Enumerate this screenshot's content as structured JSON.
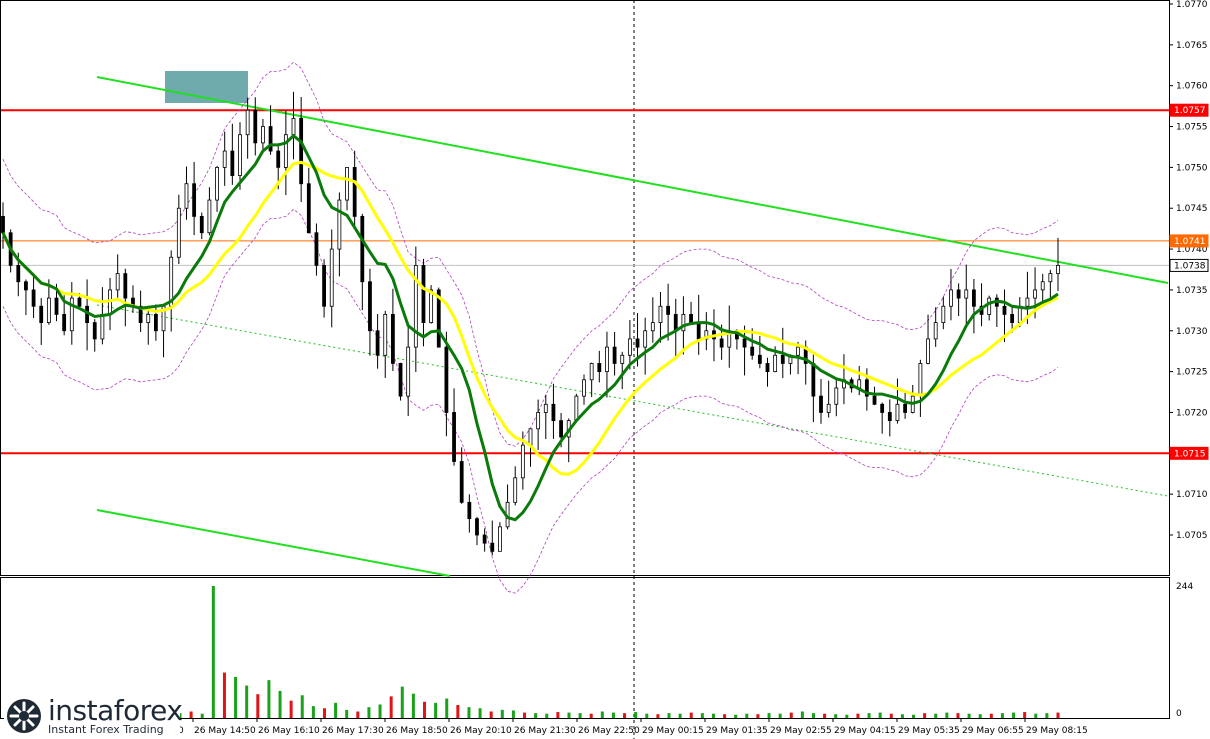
{
  "chart_data": {
    "type": "candlestick",
    "instrument_logo": {
      "brand": "instaforex",
      "tagline": "Instant Forex Trading"
    },
    "price_axis": {
      "ylim": [
        1.07,
        1.077
      ],
      "ticks": [
        "1.0770",
        "1.0765",
        "1.0760",
        "1.0755",
        "1.0750",
        "1.0745",
        "1.0740",
        "1.0735",
        "1.0730",
        "1.0725",
        "1.0720",
        "1.0715",
        "1.0710",
        "1.0705"
      ],
      "tick_values": [
        1.077,
        1.0765,
        1.076,
        1.0755,
        1.075,
        1.0745,
        1.074,
        1.0735,
        1.073,
        1.0725,
        1.072,
        1.0715,
        1.071,
        1.0705
      ]
    },
    "time_axis": {
      "labels": [
        "0",
        "26 May 14:50",
        "26 May 16:10",
        "26 May 17:30",
        "26 May 18:50",
        "26 May 20:10",
        "26 May 21:30",
        "26 May 22:50",
        "29 May 00:15",
        "29 May 01:35",
        "29 May 02:55",
        "29 May 04:15",
        "29 May 05:35",
        "29 May 06:55",
        "29 May 08:15"
      ]
    },
    "levels": [
      {
        "label": "1.0757",
        "value": 1.0757,
        "color": "#ff0000"
      },
      {
        "label": "1.0741",
        "value": 1.0741,
        "color": "#ff6a00"
      },
      {
        "label": "1.0738",
        "value": 1.0738,
        "color": "#c0c0c0"
      },
      {
        "label": "1.0715",
        "value": 1.0715,
        "color": "#ff0000"
      }
    ],
    "volume_axis": {
      "max_label": "244",
      "min_label": "0",
      "max": 244
    },
    "close_series": [
      1.0742,
      1.0738,
      1.0736,
      1.0735,
      1.0733,
      1.0731,
      1.0734,
      1.0732,
      1.073,
      1.0734,
      1.0733,
      1.0731,
      1.0729,
      1.0732,
      1.0735,
      1.0737,
      1.0734,
      1.0733,
      1.0731,
      1.0732,
      1.073,
      1.0733,
      1.0739,
      1.0745,
      1.0748,
      1.0744,
      1.0742,
      1.0746,
      1.075,
      1.0752,
      1.0749,
      1.0754,
      1.0757,
      1.0753,
      1.0755,
      1.0752,
      1.075,
      1.0754,
      1.0756,
      1.0748,
      1.0742,
      1.0738,
      1.0733,
      1.074,
      1.0746,
      1.075,
      1.0744,
      1.0736,
      1.073,
      1.0727,
      1.0732,
      1.0726,
      1.0722,
      1.0728,
      1.0738,
      1.0731,
      1.0735,
      1.0728,
      1.072,
      1.0714,
      1.0709,
      1.0707,
      1.0705,
      1.0704,
      1.0703,
      1.0706,
      1.0709,
      1.0712,
      1.0716,
      1.0718,
      1.072,
      1.0721,
      1.0719,
      1.0717,
      1.0719,
      1.0722,
      1.0724,
      1.0726,
      1.0725,
      1.0728,
      1.0726,
      1.0727,
      1.0729,
      1.0728,
      1.073,
      1.0731,
      1.0733,
      1.0732,
      1.073,
      1.0732,
      1.0731,
      1.0729,
      1.073,
      1.0729,
      1.0728,
      1.073,
      1.0729,
      1.0728,
      1.0727,
      1.0726,
      1.0725,
      1.0727,
      1.0726,
      1.0727,
      1.0728,
      1.0726,
      1.0722,
      1.072,
      1.0721,
      1.0723,
      1.0724,
      1.0723,
      1.0724,
      1.0722,
      1.0721,
      1.072,
      1.0719,
      1.0721,
      1.072,
      1.0722,
      1.0726,
      1.0729,
      1.0731,
      1.0733,
      1.0735,
      1.0734,
      1.0735,
      1.0733,
      1.0732,
      1.0734,
      1.0733,
      1.0732,
      1.0731,
      1.0733,
      1.0734,
      1.0735,
      1.0736,
      1.0737,
      1.0738
    ],
    "volume_series": [
      9,
      12,
      8,
      244,
      84,
      76,
      60,
      44,
      70,
      50,
      32,
      42,
      22,
      18,
      28,
      15,
      12,
      20,
      25,
      40,
      58,
      45,
      30,
      28,
      36,
      24,
      20,
      18,
      12,
      15,
      14,
      10,
      9,
      8,
      11,
      10,
      9,
      8,
      12,
      10,
      9,
      11,
      8,
      7,
      9,
      8,
      10,
      9,
      8,
      7,
      6,
      8,
      7,
      9,
      8,
      10,
      12,
      9,
      8,
      7,
      6,
      8,
      9,
      10,
      8,
      7,
      6,
      9,
      8,
      10,
      9,
      8,
      7,
      8,
      9,
      10,
      11,
      8,
      9,
      10
    ]
  }
}
